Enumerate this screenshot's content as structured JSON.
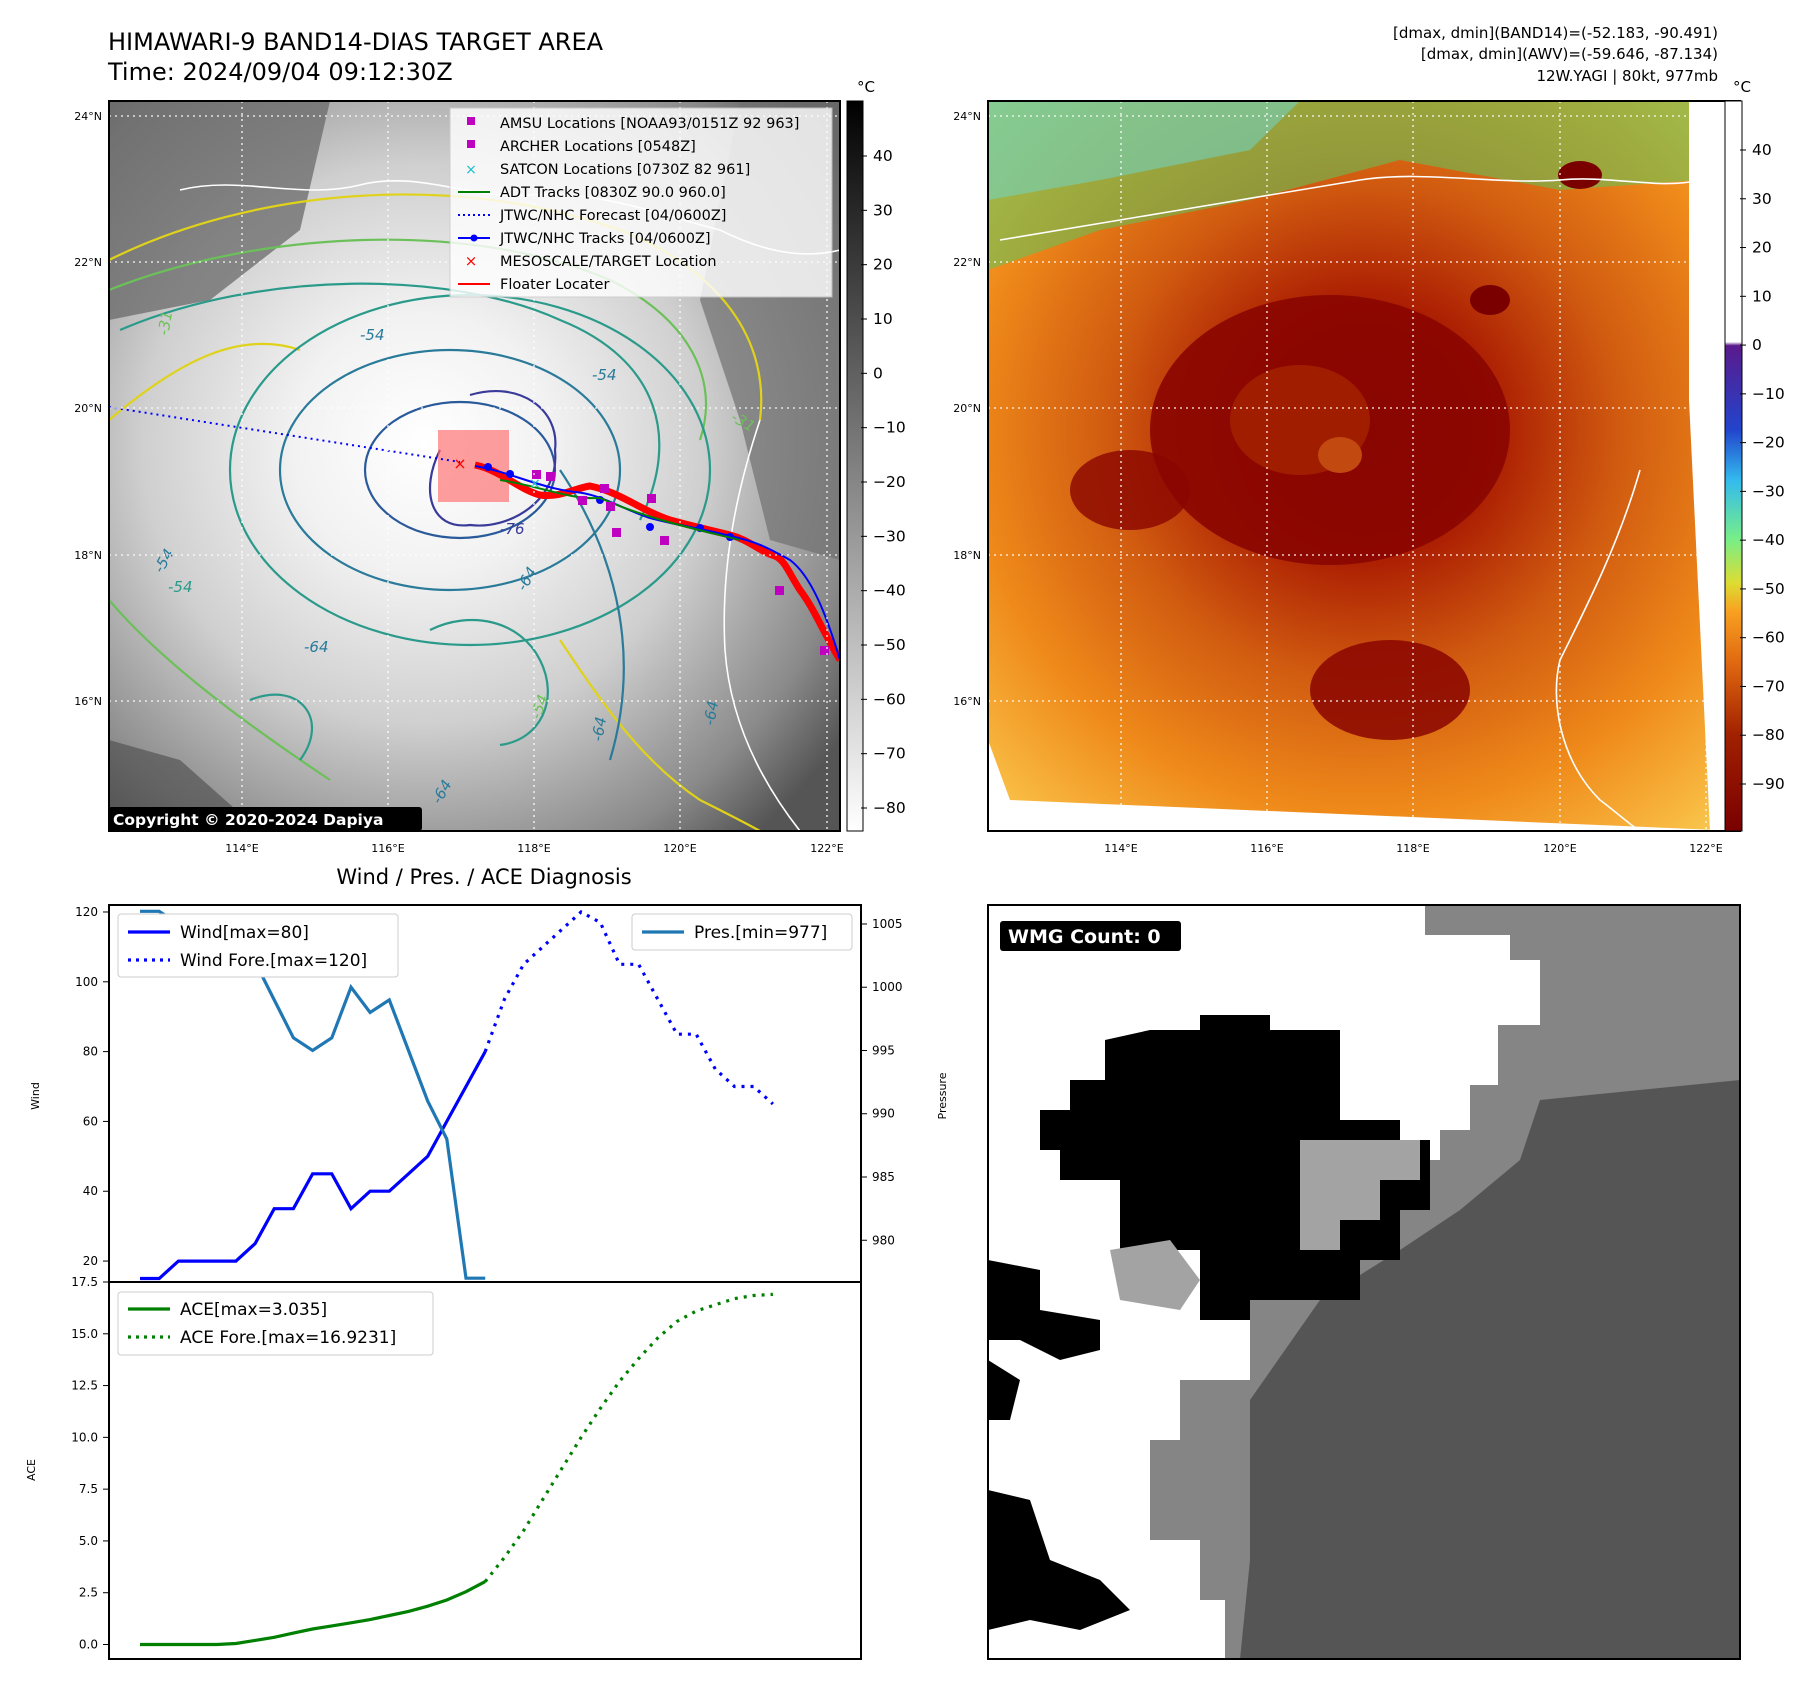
{
  "header": {
    "title": "HIMAWARI-9 BAND14-DIAS TARGET AREA",
    "time": "Time: 2024/09/04 09:12:30Z",
    "info1": "[dmax, dmin](BAND14)=(-52.183, -90.491)",
    "info2": "[dmax, dmin](AWV)=(-59.646, -87.134)",
    "info3": "12W.YAGI | 80kt, 977mb"
  },
  "map_axes": {
    "lat_ticks": [
      "24°N",
      "22°N",
      "20°N",
      "18°N",
      "16°N"
    ],
    "lon_ticks": [
      "114°E",
      "116°E",
      "118°E",
      "120°E",
      "122°E"
    ],
    "copyright": "Copyright © 2020-2024 Dapiya",
    "contour_labels": [
      "-31",
      "-31",
      "-54",
      "-54",
      "-54",
      "-54",
      "-64",
      "-64",
      "-64",
      "-64",
      "-76",
      "-54",
      "-64"
    ]
  },
  "legend_map": [
    {
      "label": "AMSU Locations [NOAA93/0151Z 92 963]",
      "icon": "square-marker",
      "color": "#c000c0"
    },
    {
      "label": "ARCHER Locations [0548Z]",
      "icon": "square-marker",
      "color": "#c000c0"
    },
    {
      "label": "SATCON Locations [0730Z 82 961]",
      "icon": "x-marker",
      "color": "#17becf"
    },
    {
      "label": "ADT Tracks [0830Z 90.0 960.0]",
      "icon": "line",
      "color": "#008000"
    },
    {
      "label": "JTWC/NHC Forecast [04/0600Z]",
      "icon": "dotted-line",
      "color": "#0000ff"
    },
    {
      "label": "JTWC/NHC Tracks [04/0600Z]",
      "icon": "line-dot",
      "color": "#0000ff"
    },
    {
      "label": "MESOSCALE/TARGET Location",
      "icon": "x-marker",
      "color": "#ff0000"
    },
    {
      "label": "Floater Locater",
      "icon": "line",
      "color": "#ff0000"
    }
  ],
  "colorbar_gray": {
    "unit": "°C",
    "ticks": [
      "40",
      "30",
      "20",
      "10",
      "0",
      "−10",
      "−20",
      "−30",
      "−40",
      "−50",
      "−60",
      "−70",
      "−80"
    ]
  },
  "colorbar_color": {
    "unit": "°C",
    "ticks": [
      "40",
      "30",
      "20",
      "10",
      "0",
      "−10",
      "−20",
      "−30",
      "−40",
      "−50",
      "−60",
      "−70",
      "−80",
      "−90"
    ]
  },
  "wmg": {
    "label": "WMG Count: 0"
  },
  "chart_data": [
    {
      "type": "line",
      "title": "Wind / Pres. / ACE Diagnosis",
      "ylabel": "Wind",
      "ylabel_right": "Pressure",
      "ylim": [
        14,
        122
      ],
      "ylim_right": [
        976.7,
        1006.5
      ],
      "yticks": [
        20,
        40,
        60,
        80,
        100,
        120
      ],
      "yticks_right": [
        980,
        985,
        990,
        995,
        1000,
        1005
      ],
      "x": [
        0,
        1,
        2,
        3,
        4,
        5,
        6,
        7,
        8,
        9,
        10,
        11,
        12,
        13,
        14,
        15,
        16,
        17,
        18,
        19,
        20,
        21,
        22,
        23,
        24,
        25,
        26,
        27,
        28,
        29,
        30,
        31,
        32,
        33,
        34,
        35,
        36,
        37
      ],
      "series": [
        {
          "name": "Wind[max=80]",
          "axis": "left",
          "style": "solid",
          "color": "#0000ff",
          "points": [
            [
              0,
              15
            ],
            [
              1,
              15
            ],
            [
              2,
              20
            ],
            [
              3,
              20
            ],
            [
              4,
              20
            ],
            [
              5,
              20
            ],
            [
              6,
              25
            ],
            [
              7,
              35
            ],
            [
              8,
              35
            ],
            [
              9,
              45
            ],
            [
              10,
              45
            ],
            [
              11,
              35
            ],
            [
              12,
              40
            ],
            [
              13,
              40
            ],
            [
              14,
              45
            ],
            [
              15,
              50
            ],
            [
              16,
              60
            ],
            [
              17,
              70
            ],
            [
              18,
              80
            ]
          ]
        },
        {
          "name": "Wind Fore.[max=120]",
          "axis": "left",
          "style": "dotted",
          "color": "#0000ff",
          "points": [
            [
              18,
              80
            ],
            [
              19,
              95
            ],
            [
              20,
              105
            ],
            [
              21,
              110
            ],
            [
              22,
              115
            ],
            [
              23,
              120
            ],
            [
              24,
              117
            ],
            [
              25,
              105
            ],
            [
              26,
              105
            ],
            [
              27,
              95
            ],
            [
              28,
              85
            ],
            [
              29,
              85
            ],
            [
              30,
              75
            ],
            [
              31,
              70
            ],
            [
              32,
              70
            ],
            [
              33,
              65
            ]
          ]
        },
        {
          "name": "Pres.[min=977]",
          "axis": "right",
          "style": "solid",
          "color": "#1f77b4",
          "points": [
            [
              0,
              1006
            ],
            [
              1,
              1006
            ],
            [
              2,
              1005
            ],
            [
              3,
              1004
            ],
            [
              4,
              1003
            ],
            [
              5,
              1002
            ],
            [
              6,
              1002
            ],
            [
              7,
              999
            ],
            [
              8,
              996
            ],
            [
              9,
              995
            ],
            [
              10,
              996
            ],
            [
              11,
              1000
            ],
            [
              12,
              998
            ],
            [
              13,
              999
            ],
            [
              14,
              995
            ],
            [
              15,
              991
            ],
            [
              16,
              988
            ],
            [
              17,
              977
            ],
            [
              18,
              977
            ]
          ]
        }
      ]
    },
    {
      "type": "line",
      "ylabel": "ACE",
      "ylim": [
        -0.7,
        17.5
      ],
      "yticks": [
        "0.0",
        "2.5",
        "5.0",
        "7.5",
        "10.0",
        "12.5",
        "15.0",
        "17.5"
      ],
      "series": [
        {
          "name": "ACE[max=3.035]",
          "style": "solid",
          "color": "#008000",
          "points": [
            [
              0,
              0
            ],
            [
              1,
              0
            ],
            [
              2,
              0
            ],
            [
              3,
              0
            ],
            [
              4,
              0
            ],
            [
              5,
              0.05
            ],
            [
              6,
              0.2
            ],
            [
              7,
              0.35
            ],
            [
              8,
              0.55
            ],
            [
              9,
              0.75
            ],
            [
              10,
              0.9
            ],
            [
              11,
              1.05
            ],
            [
              12,
              1.2
            ],
            [
              13,
              1.4
            ],
            [
              14,
              1.6
            ],
            [
              15,
              1.85
            ],
            [
              16,
              2.15
            ],
            [
              17,
              2.55
            ],
            [
              18,
              3.035
            ]
          ]
        },
        {
          "name": "ACE Fore.[max=16.9231]",
          "style": "dotted",
          "color": "#008000",
          "points": [
            [
              18,
              3.035
            ],
            [
              19,
              4.2
            ],
            [
              20,
              5.5
            ],
            [
              21,
              7.0
            ],
            [
              22,
              8.5
            ],
            [
              23,
              10.0
            ],
            [
              24,
              11.4
            ],
            [
              25,
              12.7
            ],
            [
              26,
              13.8
            ],
            [
              27,
              14.8
            ],
            [
              28,
              15.6
            ],
            [
              29,
              16.1
            ],
            [
              30,
              16.4
            ],
            [
              31,
              16.7
            ],
            [
              32,
              16.85
            ],
            [
              33,
              16.9
            ]
          ]
        }
      ]
    }
  ]
}
